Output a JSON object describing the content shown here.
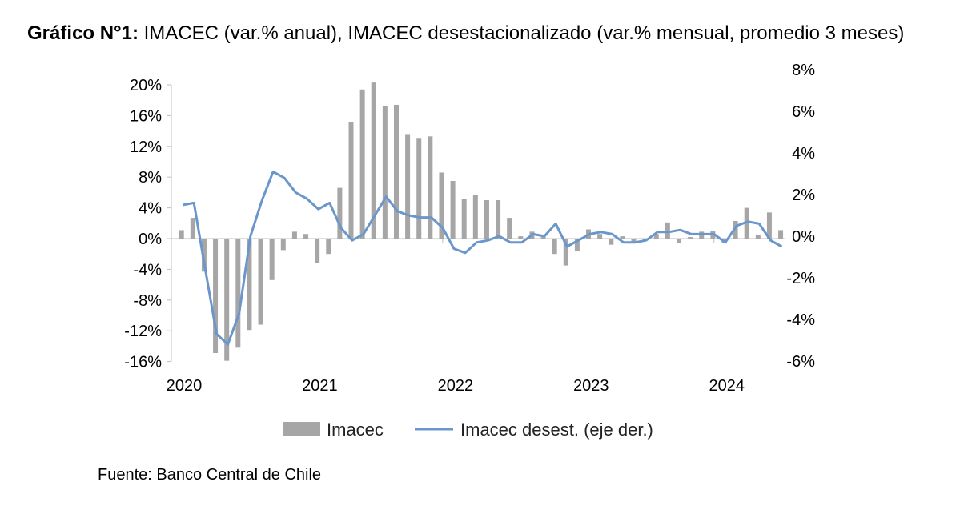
{
  "header": {
    "title_bold": "Gráfico N°1:",
    "title_rest": " IMACEC  (var.% anual), IMACEC desestacionalizado (var.% mensual, promedio 3 meses)"
  },
  "footer": {
    "source": "Fuente: Banco Central de Chile"
  },
  "colors": {
    "bar": "#a6a6a6",
    "line": "#6a96cc",
    "axis": "#bfbfbf"
  },
  "chart_data": {
    "type": "bar+line",
    "title": "Gráfico N°1: IMACEC (var.% anual), IMACEC desestacionalizado (var.% mensual, promedio 3 meses)",
    "x_labels": [
      "2020",
      "2021",
      "2022",
      "2023",
      "2024"
    ],
    "y_left": {
      "ylim": [
        -16,
        20
      ],
      "ticks": [
        -16,
        -12,
        -8,
        -4,
        0,
        4,
        8,
        12,
        16,
        20
      ],
      "tick_labels": [
        "-16%",
        "-12%",
        "-8%",
        "-4%",
        "0%",
        "4%",
        "8%",
        "12%",
        "16%",
        "20%"
      ]
    },
    "y_right": {
      "ylim": [
        -6,
        8
      ],
      "ticks": [
        -6,
        -4,
        -2,
        0,
        2,
        4,
        6,
        8
      ],
      "tick_labels": [
        "-6%",
        "-4%",
        "-2%",
        "0%",
        "2%",
        "4%",
        "6%",
        "8%"
      ]
    },
    "series": [
      {
        "name": "Imacec",
        "type": "bar",
        "axis": "left",
        "values": [
          1.1,
          2.7,
          -4.3,
          -14.9,
          -15.9,
          -14.2,
          -11.9,
          -11.2,
          -5.4,
          -1.5,
          0.9,
          0.6,
          -3.2,
          -2.0,
          6.6,
          15.1,
          19.4,
          20.3,
          17.2,
          17.4,
          13.6,
          13.1,
          13.3,
          8.6,
          7.5,
          5.2,
          5.7,
          5.0,
          5.0,
          2.7,
          0.3,
          0.9,
          0.2,
          -2.0,
          -3.5,
          -1.6,
          1.2,
          0.6,
          -0.8,
          0.3,
          -0.5,
          -0.3,
          0.6,
          2.1,
          -0.6,
          0.2,
          0.9,
          1.0,
          -0.6,
          2.3,
          4.0,
          0.5,
          3.4,
          1.1
        ]
      },
      {
        "name": "Imacec desest. (eje der.)",
        "type": "line",
        "axis": "right",
        "values": [
          1.5,
          1.6,
          -1.6,
          -4.7,
          -5.2,
          -3.7,
          0.0,
          1.7,
          3.1,
          2.8,
          2.1,
          1.8,
          1.3,
          1.6,
          0.4,
          -0.2,
          0.1,
          1.0,
          1.9,
          1.2,
          1.0,
          0.9,
          0.9,
          0.4,
          -0.6,
          -0.8,
          -0.3,
          -0.2,
          0.0,
          -0.3,
          -0.3,
          0.1,
          0.0,
          0.6,
          -0.5,
          -0.2,
          0.1,
          0.2,
          0.1,
          -0.3,
          -0.3,
          -0.2,
          0.2,
          0.2,
          0.3,
          0.1,
          0.1,
          0.1,
          -0.3,
          0.5,
          0.7,
          0.6,
          -0.2,
          -0.5
        ]
      }
    ],
    "legend": [
      "Imacec",
      "Imacec desest. (eje der.)"
    ],
    "legend_position": "bottom"
  }
}
